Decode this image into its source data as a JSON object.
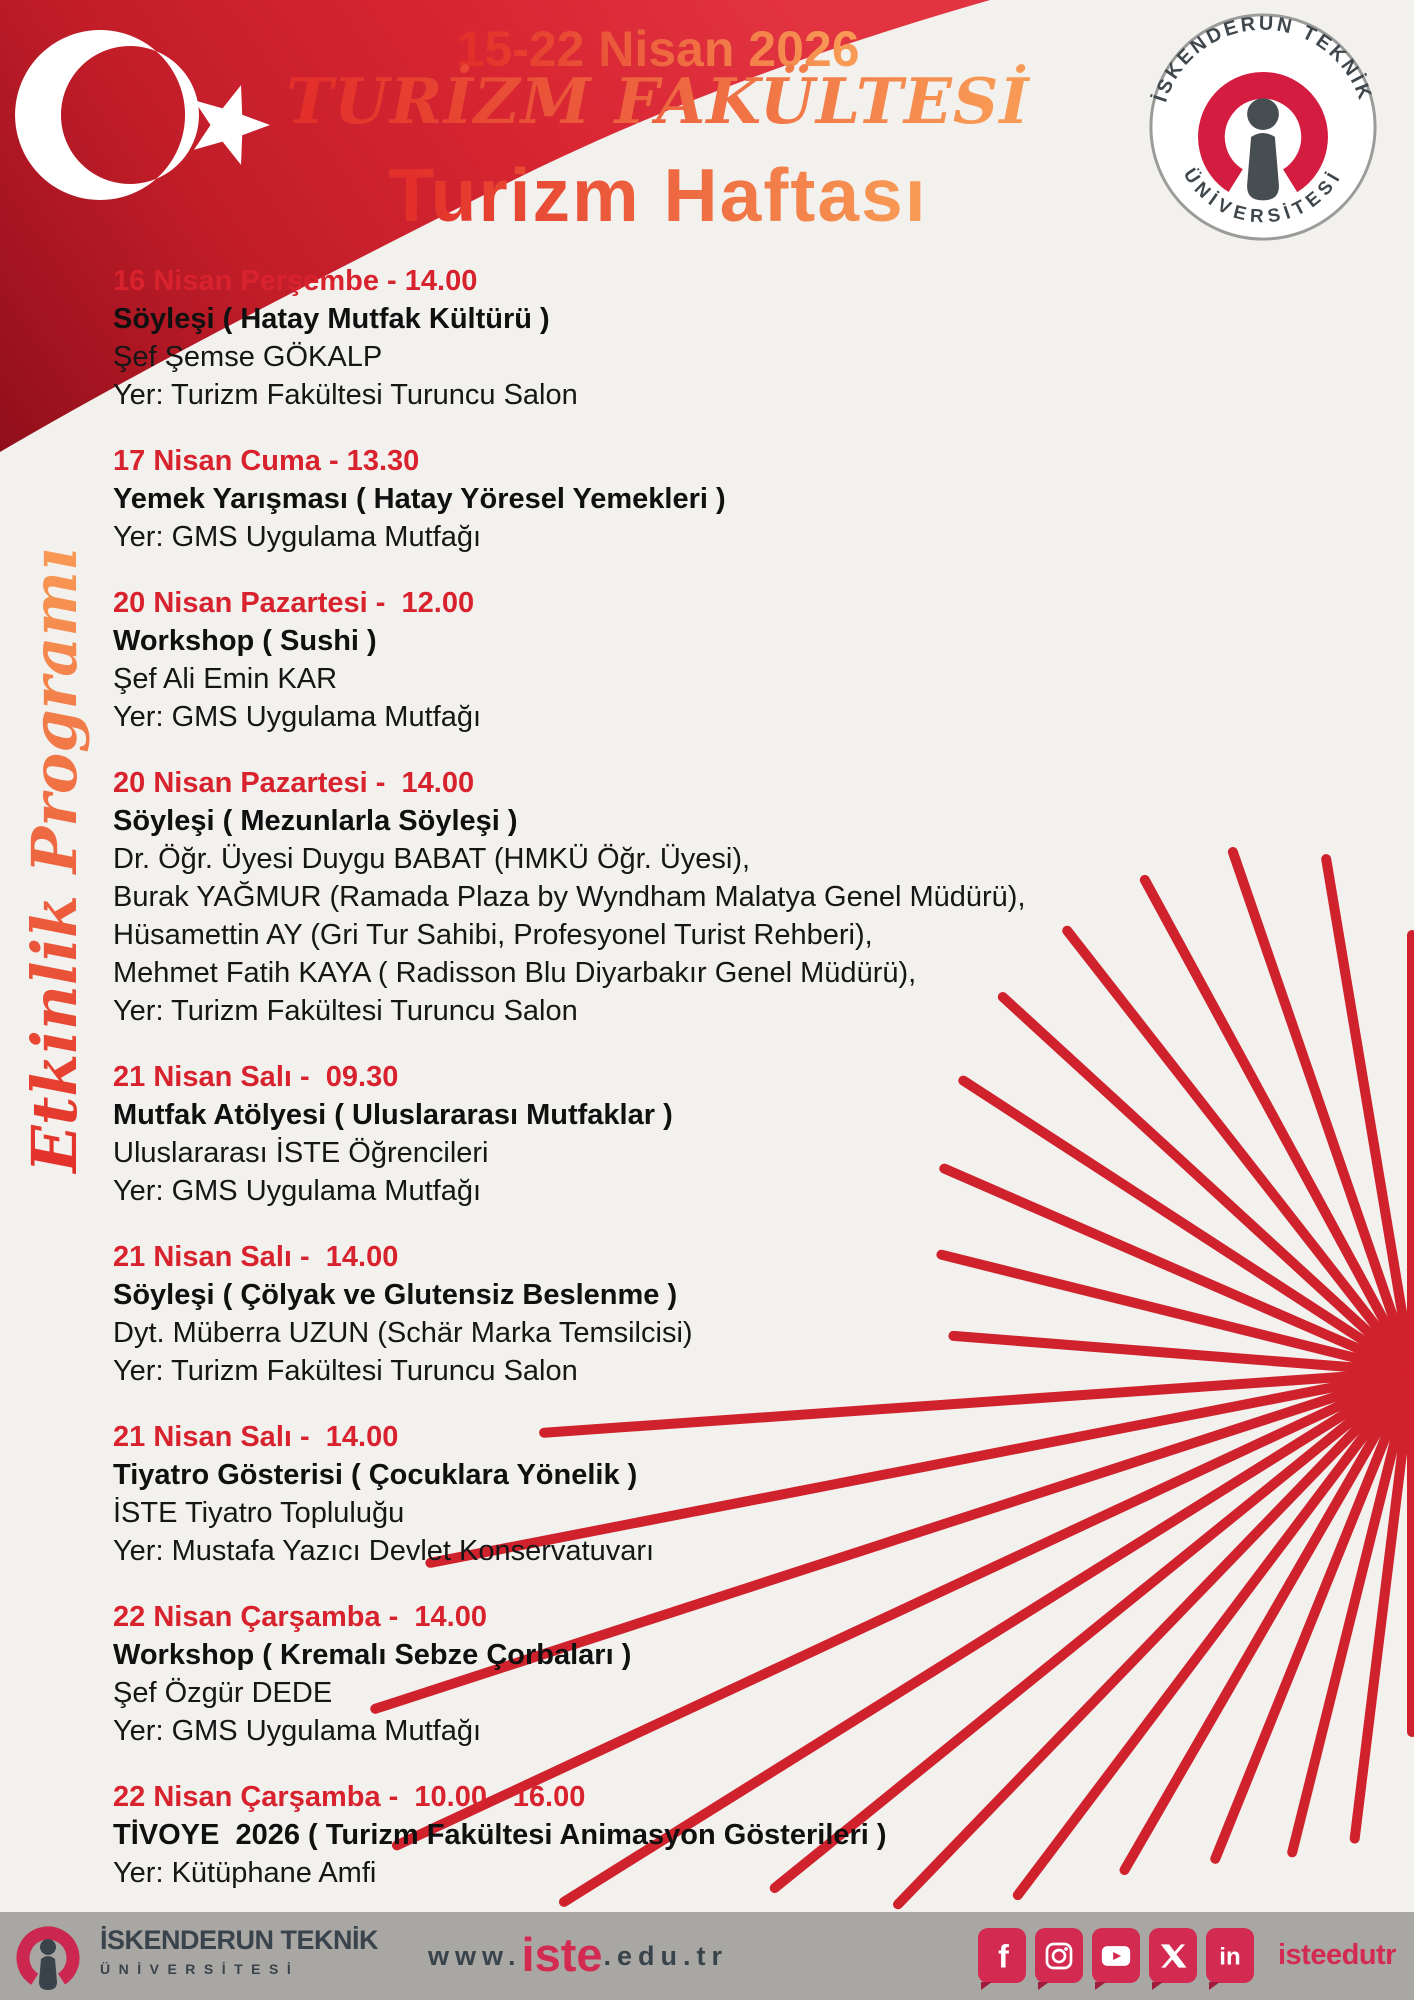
{
  "header": {
    "date_range": "15-22 Nisan 2026",
    "faculty": "TURİZM FAKÜLTESİ",
    "week_title": "Turizm Haftası"
  },
  "side_label": "Etkinlik Programı",
  "seal": {
    "top_text": "İSKENDERUN TEKNİK",
    "bottom_text": "ÜNİVERSİTESİ"
  },
  "events": [
    {
      "date": "16 Nisan Perşembe - 14.00",
      "title": "Söyleşi ( Hatay Mutfak Kültürü )",
      "lines": [
        "Şef Şemse GÖKALP",
        "Yer: Turizm Fakültesi Turuncu Salon"
      ]
    },
    {
      "date": "17 Nisan Cuma - 13.30",
      "title": "Yemek Yarışması ( Hatay Yöresel Yemekleri )",
      "lines": [
        "Yer: GMS Uygulama Mutfağı"
      ]
    },
    {
      "date": "20 Nisan Pazartesi -  12.00",
      "title": "Workshop ( Sushi )",
      "lines": [
        "Şef Ali Emin KAR",
        "Yer: GMS Uygulama Mutfağı"
      ]
    },
    {
      "date": "20 Nisan Pazartesi -  14.00",
      "title": "Söyleşi ( Mezunlarla Söyleşi )",
      "lines": [
        "Dr. Öğr. Üyesi Duygu BABAT (HMKÜ Öğr. Üyesi),",
        "Burak YAĞMUR (Ramada Plaza by Wyndham Malatya Genel Müdürü),",
        "Hüsamettin AY (Gri Tur Sahibi, Profesyonel Turist Rehberi),",
        "Mehmet Fatih KAYA ( Radisson Blu Diyarbakır Genel Müdürü),",
        "Yer: Turizm Fakültesi Turuncu Salon"
      ]
    },
    {
      "date": "21 Nisan Salı -  09.30",
      "title": "Mutfak Atölyesi ( Uluslararası Mutfaklar )",
      "lines": [
        "Uluslararası İSTE Öğrencileri",
        "Yer: GMS Uygulama Mutfağı"
      ]
    },
    {
      "date": "21 Nisan Salı -  14.00",
      "title": "Söyleşi ( Çölyak ve Glutensiz Beslenme )",
      "lines": [
        "Dyt. Müberra UZUN (Schär Marka Temsilcisi)",
        "Yer: Turizm Fakültesi Turuncu Salon"
      ]
    },
    {
      "date": "21 Nisan Salı -  14.00",
      "title": "Tiyatro Gösterisi ( Çocuklara Yönelik )",
      "lines": [
        "İSTE Tiyatro Topluluğu",
        "Yer: Mustafa Yazıcı Devlet Konservatuvarı"
      ]
    },
    {
      "date": "22 Nisan Çarşamba -  14.00",
      "title": "Workshop ( Kremalı Sebze Çorbaları )",
      "lines": [
        "Şef Özgür DEDE",
        "Yer: GMS Uygulama Mutfağı"
      ]
    },
    {
      "date": "22 Nisan Çarşamba -  10.00 - 16.00",
      "title": "TİVOYE  2026 ( Turizm Fakültesi Animasyon Gösterileri )",
      "lines": [
        "Yer: Kütüphane Amfi"
      ]
    }
  ],
  "footer": {
    "university_line1": "İSKENDERUN TEKNİK",
    "university_line2": "ÜNİVERSİTESİ",
    "website": {
      "prefix": "www.",
      "brand": "iste",
      "suffix": ".edu.tr"
    },
    "social_handle": "isteedutr",
    "social_icons": [
      "facebook-icon",
      "instagram-icon",
      "youtube-icon",
      "x-icon",
      "linkedin-icon"
    ]
  },
  "colors": {
    "background": "#f2f1ee",
    "date_red": "#d8232e",
    "ray_red": "#d0222d",
    "flag_red": "#ce1f2b",
    "crimson": "#d32a52",
    "slate": "#39434b",
    "gradient_from": "#e3302a",
    "gradient_to": "#f89a55",
    "footer_bg": "#a9a7a4",
    "ink": "#161616"
  }
}
